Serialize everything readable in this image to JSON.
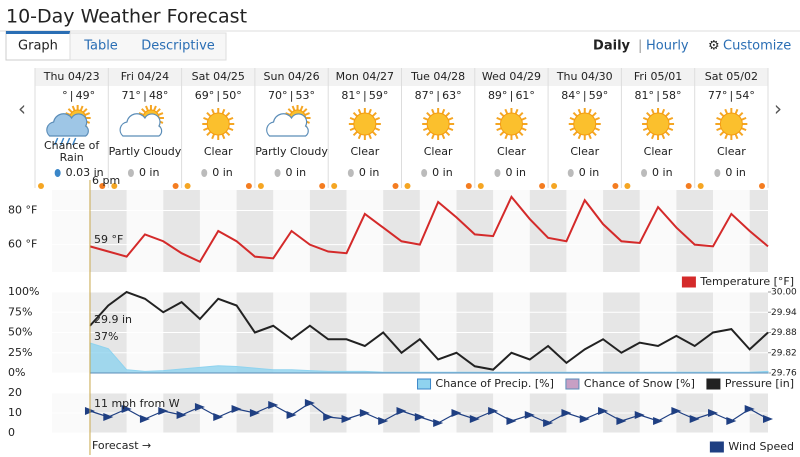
{
  "header": {
    "title": "10-Day Weather Forecast",
    "tabs": [
      "Graph",
      "Table",
      "Descriptive"
    ],
    "modes": [
      "Daily",
      "Hourly"
    ],
    "customize": "Customize"
  },
  "days": [
    {
      "date": "Thu 04/23",
      "hi": "°",
      "lo": "49°",
      "condition": "Chance of Rain",
      "precip": "0.03 in"
    },
    {
      "date": "Fri 04/24",
      "hi": "71°",
      "lo": "48°",
      "condition": "Partly Cloudy",
      "precip": "0 in"
    },
    {
      "date": "Sat 04/25",
      "hi": "69°",
      "lo": "50°",
      "condition": "Clear",
      "precip": "0 in"
    },
    {
      "date": "Sun 04/26",
      "hi": "70°",
      "lo": "53°",
      "condition": "Partly Cloudy",
      "precip": "0 in"
    },
    {
      "date": "Mon 04/27",
      "hi": "81°",
      "lo": "59°",
      "condition": "Clear",
      "precip": "0 in"
    },
    {
      "date": "Tue 04/28",
      "hi": "87°",
      "lo": "63°",
      "condition": "Clear",
      "precip": "0 in"
    },
    {
      "date": "Wed 04/29",
      "hi": "89°",
      "lo": "61°",
      "condition": "Clear",
      "precip": "0 in"
    },
    {
      "date": "Thu 04/30",
      "hi": "84°",
      "lo": "59°",
      "condition": "Clear",
      "precip": "0 in"
    },
    {
      "date": "Fri 05/01",
      "hi": "81°",
      "lo": "58°",
      "condition": "Clear",
      "precip": "0 in"
    },
    {
      "date": "Sat 05/02",
      "hi": "77°",
      "lo": "54°",
      "condition": "Clear",
      "precip": "0 in"
    }
  ],
  "now_label": "6 pm",
  "forecast_label": "Forecast →",
  "chart_data": [
    {
      "type": "line",
      "xlim": [
        0,
        240
      ],
      "x": [
        18,
        24,
        30,
        36,
        42,
        48,
        54,
        60,
        66,
        72,
        78,
        84,
        90,
        96,
        102,
        108,
        114,
        120,
        126,
        132,
        138,
        144,
        150,
        156,
        162,
        168,
        174,
        180,
        186,
        192,
        198,
        204,
        210,
        216,
        222,
        228,
        234,
        240
      ],
      "ylim": [
        44,
        92
      ],
      "yticks": [
        {
          "value": 60,
          "label": "60 °F"
        },
        {
          "value": 80,
          "label": "80 °F"
        }
      ],
      "series": [
        {
          "name": "Temperature [°F]",
          "color": "#d42a2a",
          "values": [
            59,
            56,
            53,
            66,
            62,
            55,
            50,
            68,
            62,
            53,
            52,
            68,
            60,
            56,
            55,
            78,
            70,
            62,
            60,
            85,
            76,
            66,
            65,
            88,
            75,
            64,
            62,
            86,
            72,
            62,
            61,
            82,
            70,
            60,
            59,
            78,
            68,
            59
          ]
        }
      ],
      "annotation": "59 °F"
    },
    {
      "type": "line",
      "xlim": [
        0,
        240
      ],
      "x": [
        18,
        24,
        30,
        36,
        42,
        48,
        54,
        60,
        66,
        72,
        78,
        84,
        90,
        96,
        102,
        108,
        114,
        120,
        126,
        132,
        138,
        144,
        150,
        156,
        162,
        168,
        174,
        180,
        186,
        192,
        198,
        204,
        210,
        216,
        222,
        228,
        234,
        240
      ],
      "ylim": [
        0,
        100
      ],
      "yticks": [
        {
          "value": 0,
          "label": "0%"
        },
        {
          "value": 25,
          "label": "25%"
        },
        {
          "value": 50,
          "label": "50%"
        },
        {
          "value": 75,
          "label": "75%"
        },
        {
          "value": 100,
          "label": "100%"
        }
      ],
      "y2lim": [
        29.76,
        30.0
      ],
      "y2ticks": [
        29.76,
        29.82,
        29.88,
        29.94,
        {
          "value": 30.0,
          "label": "30.00"
        }
      ],
      "series": [
        {
          "name": "Chance of Precip. [%]",
          "color": "#8fd3ef",
          "values": [
            37,
            30,
            4,
            2,
            3,
            5,
            7,
            9,
            8,
            6,
            4,
            4,
            3,
            2,
            2,
            2,
            1,
            1,
            1,
            1,
            1,
            1,
            1,
            1,
            1,
            1,
            1,
            1,
            1,
            1,
            1,
            1,
            1,
            1,
            1,
            1,
            1,
            2
          ]
        },
        {
          "name": "Chance of Snow [%]",
          "color": "#c79fc4",
          "values": [
            0,
            0,
            0,
            0,
            0,
            0,
            0,
            0,
            0,
            0,
            0,
            0,
            0,
            0,
            0,
            0,
            0,
            0,
            0,
            0,
            0,
            0,
            0,
            0,
            0,
            0,
            0,
            0,
            0,
            0,
            0,
            0,
            0,
            0,
            0,
            0,
            0,
            0
          ]
        },
        {
          "name": "Pressure [in]",
          "color": "#222222",
          "axis": "y2",
          "values": [
            29.9,
            29.96,
            30.0,
            29.98,
            29.94,
            29.97,
            29.92,
            29.98,
            29.96,
            29.88,
            29.9,
            29.86,
            29.9,
            29.86,
            29.86,
            29.84,
            29.88,
            29.82,
            29.86,
            29.8,
            29.82,
            29.78,
            29.77,
            29.82,
            29.8,
            29.84,
            29.79,
            29.83,
            29.86,
            29.82,
            29.85,
            29.84,
            29.87,
            29.84,
            29.88,
            29.89,
            29.83,
            29.88
          ]
        }
      ],
      "annotations": [
        "29.9 in",
        "37%"
      ]
    },
    {
      "type": "line",
      "xlim": [
        0,
        240
      ],
      "x": [
        18,
        24,
        30,
        36,
        42,
        48,
        54,
        60,
        66,
        72,
        78,
        84,
        90,
        96,
        102,
        108,
        114,
        120,
        126,
        132,
        138,
        144,
        150,
        156,
        162,
        168,
        174,
        180,
        186,
        192,
        198,
        204,
        210,
        216,
        222,
        228,
        234,
        240
      ],
      "ylim": [
        0,
        20
      ],
      "yticks": [
        0,
        10,
        20
      ],
      "series": [
        {
          "name": "Wind Speed",
          "color": "#1f3f82",
          "values": [
            11,
            8,
            12,
            7,
            11,
            9,
            13,
            8,
            12,
            10,
            14,
            9,
            15,
            8,
            7,
            10,
            6,
            11,
            8,
            5,
            10,
            7,
            11,
            6,
            9,
            5,
            10,
            7,
            11,
            6,
            9,
            6,
            11,
            7,
            10,
            6,
            12,
            7
          ]
        }
      ],
      "annotation": "11 mph from W"
    }
  ]
}
